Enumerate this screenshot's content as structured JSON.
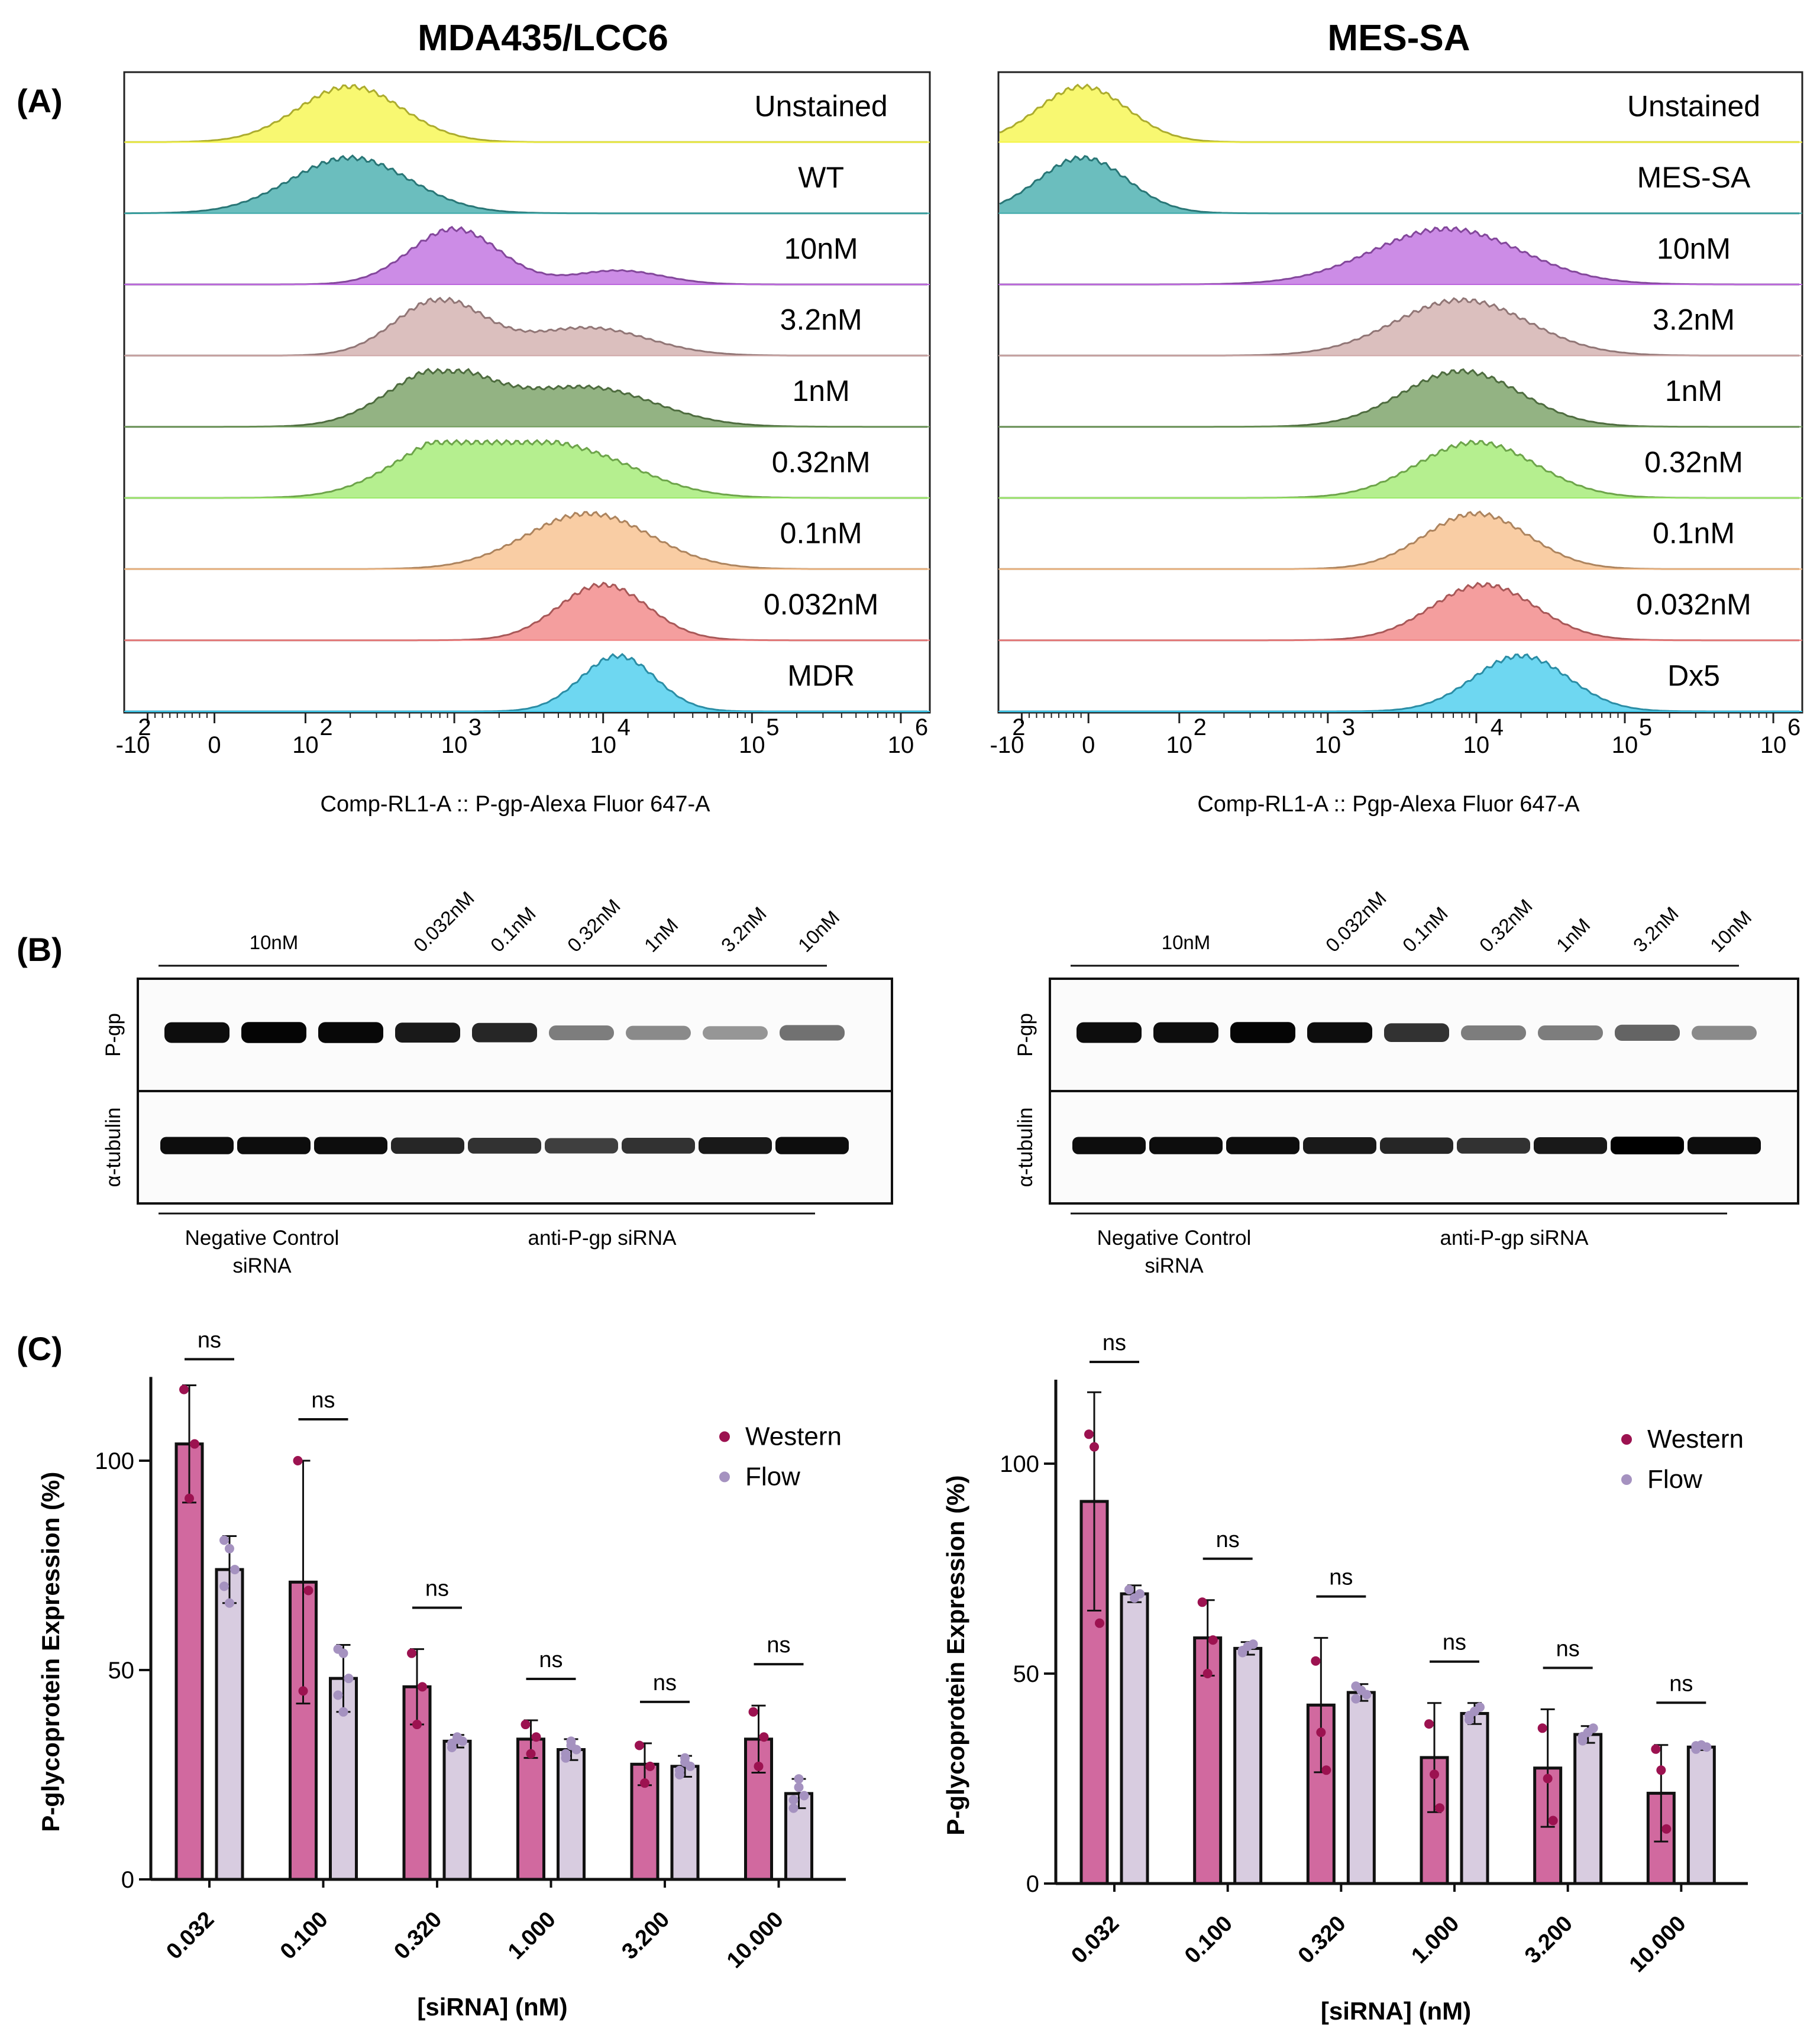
{
  "figure": {
    "panel_labels": [
      "(A)",
      "(B)",
      "(C)"
    ],
    "column_titles": [
      "MDA435/LCC6",
      "MES-SA"
    ]
  },
  "chart_data": [
    {
      "type": "histogram_stack",
      "title": "MDA435/LCC6",
      "xlabel": "Comp-RL1-A :: P-gp-Alexa Fluor    647-A",
      "x_scale": "biexponential",
      "x_tick_labels": [
        "-10",
        "0",
        "10",
        "10",
        "10",
        "10",
        "10"
      ],
      "x_tick_exponents": [
        "2",
        "",
        "2",
        "3",
        "4",
        "5",
        "6"
      ],
      "tracks": [
        {
          "label": "Unstained",
          "color": "#f5f542",
          "peak_log": 2.3,
          "spread": 0.35,
          "extra": []
        },
        {
          "label": "WT",
          "color": "#3aa8a8",
          "peak_log": 2.3,
          "spread": 0.4,
          "extra": []
        },
        {
          "label": "10nM",
          "color": "#bb66dd",
          "peak_log": 3.0,
          "spread": 0.3,
          "extra": [
            [
              4.1,
              0.3,
              0.25
            ]
          ]
        },
        {
          "label": "3.2nM",
          "color": "#cfa9a8",
          "peak_log": 2.9,
          "spread": 0.3,
          "extra": [
            [
              3.9,
              0.4,
              0.5
            ]
          ]
        },
        {
          "label": "1nM",
          "color": "#6f9a5a",
          "peak_log": 2.9,
          "spread": 0.35,
          "extra": [
            [
              3.9,
              0.45,
              0.7
            ]
          ]
        },
        {
          "label": "0.32nM",
          "color": "#9cea6a",
          "peak_log": 3.0,
          "spread": 0.4,
          "extra": [
            [
              3.8,
              0.45,
              0.8
            ]
          ]
        },
        {
          "label": "0.1nM",
          "color": "#f7bc86",
          "peak_log": 3.9,
          "spread": 0.42,
          "extra": []
        },
        {
          "label": "0.032nM",
          "color": "#f07d7d",
          "peak_log": 4.0,
          "spread": 0.3,
          "extra": []
        },
        {
          "label": "MDR",
          "color": "#3ec9ec",
          "peak_log": 4.1,
          "spread": 0.25,
          "extra": []
        }
      ]
    },
    {
      "type": "histogram_stack",
      "title": "MES-SA",
      "xlabel": "Comp-RL1-A :: Pgp-Alexa Fluor    647-A",
      "x_scale": "biexponential",
      "x_tick_labels": [
        "-10",
        "0",
        "10",
        "10",
        "10",
        "10",
        "10"
      ],
      "x_tick_exponents": [
        "2",
        "",
        "2",
        "3",
        "4",
        "5",
        "6"
      ],
      "tracks": [
        {
          "label": "Unstained",
          "color": "#f5f542",
          "peak_log": 1.35,
          "spread": 0.3,
          "extra": []
        },
        {
          "label": "MES-SA",
          "color": "#3aa8a8",
          "peak_log": 1.35,
          "spread": 0.3,
          "extra": []
        },
        {
          "label": "10nM",
          "color": "#bb66dd",
          "peak_log": 3.8,
          "spread": 0.5,
          "extra": []
        },
        {
          "label": "3.2nM",
          "color": "#cfa9a8",
          "peak_log": 3.9,
          "spread": 0.45,
          "extra": []
        },
        {
          "label": "1nM",
          "color": "#6f9a5a",
          "peak_log": 3.9,
          "spread": 0.4,
          "extra": []
        },
        {
          "label": "0.32nM",
          "color": "#9cea6a",
          "peak_log": 4.0,
          "spread": 0.4,
          "extra": []
        },
        {
          "label": "0.1nM",
          "color": "#f7bc86",
          "peak_log": 4.0,
          "spread": 0.35,
          "extra": []
        },
        {
          "label": "0.032nM",
          "color": "#f07d7d",
          "peak_log": 4.05,
          "spread": 0.35,
          "extra": []
        },
        {
          "label": "Dx5",
          "color": "#3ec9ec",
          "peak_log": 4.3,
          "spread": 0.32,
          "extra": []
        }
      ]
    },
    {
      "type": "western_blot",
      "column": "MDA435/LCC6",
      "group_label_top": "10nM",
      "lane_labels": [
        "0.032nM",
        "0.1nM",
        "0.32nM",
        "1nM",
        "3.2nM",
        "10nM"
      ],
      "row_labels": [
        "P-gp",
        "α-tubulin"
      ],
      "bottom_labels": [
        "Negative Control siRNA",
        "anti-P-gp siRNA"
      ],
      "band_intensity": {
        "P-gp": [
          0.95,
          0.98,
          0.97,
          0.9,
          0.85,
          0.5,
          0.45,
          0.4,
          0.55
        ],
        "α-tubulin": [
          0.95,
          0.95,
          0.95,
          0.85,
          0.8,
          0.75,
          0.8,
          0.9,
          0.95
        ]
      }
    },
    {
      "type": "western_blot",
      "column": "MES-SA",
      "group_label_top": "10nM",
      "lane_labels": [
        "0.032nM",
        "0.1nM",
        "0.32nM",
        "1nM",
        "3.2nM",
        "10nM"
      ],
      "row_labels": [
        "P-gp",
        "α-tubulin"
      ],
      "bottom_labels": [
        "Negative Control siRNA",
        "anti-P-gp siRNA"
      ],
      "band_intensity": {
        "P-gp": [
          0.95,
          0.95,
          0.98,
          0.95,
          0.8,
          0.5,
          0.5,
          0.6,
          0.45
        ],
        "α-tubulin": [
          0.95,
          0.95,
          0.95,
          0.9,
          0.85,
          0.8,
          0.9,
          1.0,
          0.95
        ]
      }
    },
    {
      "type": "bar",
      "column": "MDA435/LCC6",
      "xlabel": "[siRNA] (nM)",
      "ylabel": "P-glycoprotein Expression (%)",
      "ylim": [
        0,
        120
      ],
      "yticks": [
        0,
        50,
        100
      ],
      "categories": [
        "0.032",
        "0.100",
        "0.320",
        "1.000",
        "3.200",
        "10.000"
      ],
      "series": [
        {
          "name": "Western",
          "color": "#d1699f",
          "dot_color": "#9c1250",
          "values": [
            104,
            71,
            46,
            33.5,
            27.5,
            33.5
          ],
          "errors": [
            14,
            29,
            9,
            4.5,
            5,
            8
          ],
          "points": [
            [
              117,
              91,
              104
            ],
            [
              100,
              45,
              69
            ],
            [
              54,
              37,
              46
            ],
            [
              37,
              30,
              34
            ],
            [
              32,
              23,
              27
            ],
            [
              40,
              27,
              34
            ]
          ]
        },
        {
          "name": "Flow",
          "color": "#d8cce0",
          "dot_color": "#a592c0",
          "values": [
            74,
            48,
            33,
            31,
            27,
            20.5
          ],
          "errors": [
            8,
            8,
            1.5,
            2.5,
            2.5,
            3.5
          ],
          "points": [
            [
              81,
              66,
              74,
              70,
              79
            ],
            [
              55,
              40,
              48,
              44,
              54
            ],
            [
              31.5,
              34,
              33,
              32.5,
              33.5
            ],
            [
              29,
              33,
              31,
              30,
              32
            ],
            [
              25,
              29,
              27,
              26,
              28
            ],
            [
              17,
              24,
              20,
              19,
              22
            ]
          ]
        }
      ],
      "annotations": [
        "ns",
        "ns",
        "ns",
        "ns",
        "ns",
        "ns"
      ],
      "legend": "top-right"
    },
    {
      "type": "bar",
      "column": "MES-SA",
      "xlabel": "[siRNA] (nM)",
      "ylabel": "P-glycoprotein Expression (%)",
      "ylim": [
        0,
        120
      ],
      "yticks": [
        0,
        50,
        100
      ],
      "categories": [
        "0.032",
        "0.100",
        "0.320",
        "1.000",
        "3.200",
        "10.000"
      ],
      "series": [
        {
          "name": "Western",
          "color": "#d1699f",
          "dot_color": "#9c1250",
          "values": [
            91,
            58.5,
            42.5,
            30,
            27.5,
            21.5
          ],
          "errors": [
            26,
            9,
            16,
            13,
            14,
            11.5
          ],
          "points": [
            [
              107,
              104,
              62
            ],
            [
              67,
              50,
              58
            ],
            [
              53,
              36,
              27
            ],
            [
              38,
              26,
              18
            ],
            [
              37,
              25,
              15
            ],
            [
              32,
              27,
              13
            ]
          ]
        },
        {
          "name": "Flow",
          "color": "#d8cce0",
          "dot_color": "#a592c0",
          "values": [
            69,
            56,
            45.5,
            40.5,
            35.5,
            32.5
          ],
          "errors": [
            2,
            1.5,
            2,
            2.5,
            2,
            0.7
          ],
          "points": [
            [
              70,
              68,
              69,
              70
            ],
            [
              55,
              56.5,
              57,
              55.5
            ],
            [
              44,
              46,
              45,
              47
            ],
            [
              39,
              41,
              42,
              40
            ],
            [
              34,
              36,
              37,
              35
            ],
            [
              32,
              33,
              32.5,
              32.8
            ]
          ]
        }
      ],
      "annotations": [
        "ns",
        "ns",
        "ns",
        "ns",
        "ns",
        "ns"
      ],
      "legend": "top-right"
    }
  ]
}
